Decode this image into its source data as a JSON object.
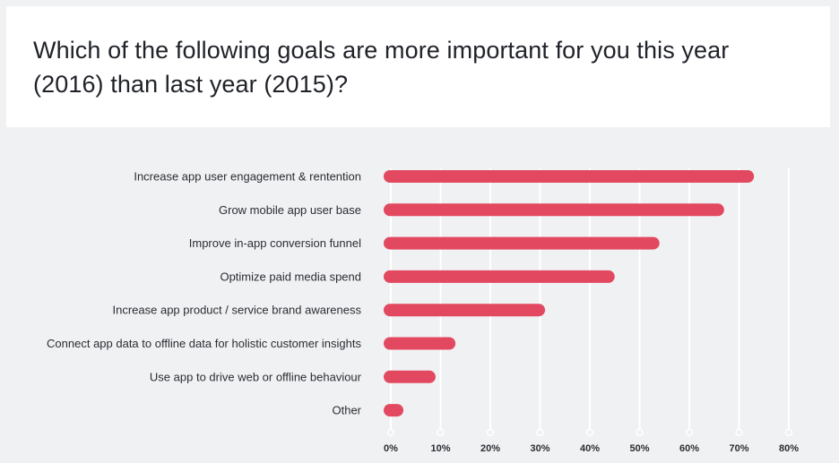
{
  "chart_data": {
    "type": "bar",
    "orientation": "horizontal",
    "title": "Which of the following goals are more important for you this year (2016) than last year (2015)?",
    "categories": [
      "Increase app user engagement & rentention",
      "Grow mobile app user base",
      "Improve in-app conversion funnel",
      "Optimize paid media spend",
      "Increase app product / service brand awareness",
      "Connect app data to offline data for holistic customer insights",
      "Use app to drive web or offline behaviour",
      "Other"
    ],
    "values": [
      73,
      67,
      54,
      45,
      31,
      13,
      9,
      2
    ],
    "unit": "%",
    "xlim": [
      0,
      80
    ],
    "ticks": [
      "0%",
      "10%",
      "20%",
      "30%",
      "40%",
      "50%",
      "60%",
      "70%",
      "80%"
    ],
    "grid": true,
    "bar_color": "#e2485f",
    "grid_color": "#ffffff"
  }
}
